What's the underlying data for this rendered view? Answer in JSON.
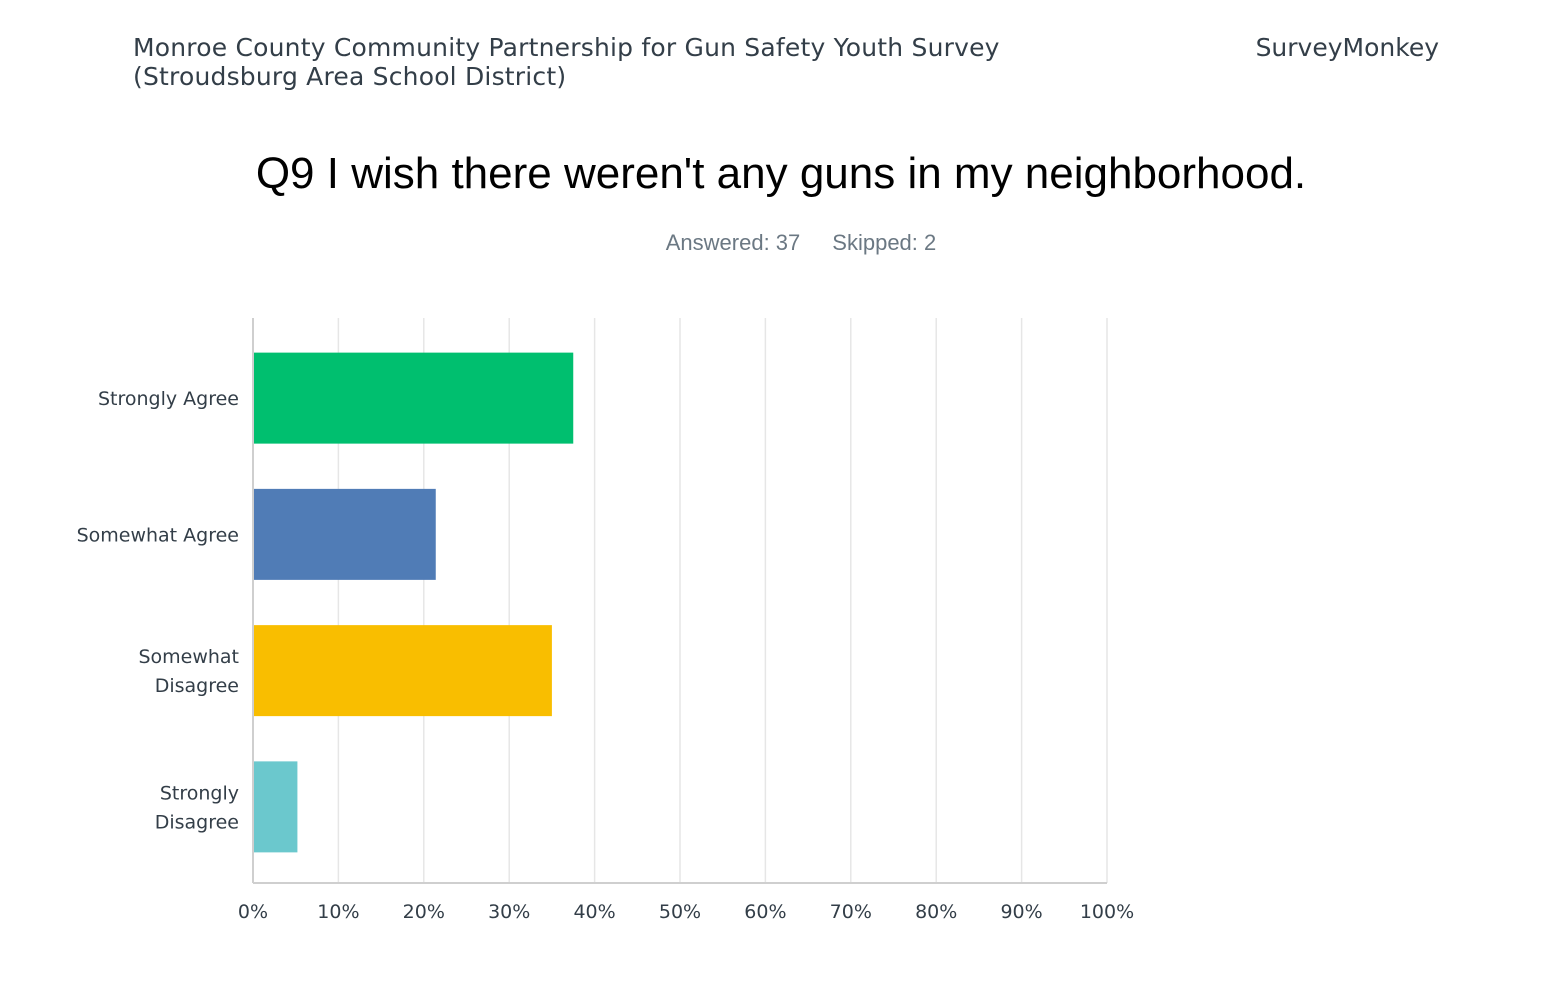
{
  "header": {
    "survey_title": "Monroe County Community Partnership for Gun Safety Youth Survey (Stroudsburg Area School District)",
    "brand": "SurveyMonkey"
  },
  "question": {
    "title": "Q9 I wish there weren't any guns in my neighborhood.",
    "answered": "Answered: 37",
    "skipped": "Skipped: 2"
  },
  "chart_data": {
    "type": "bar",
    "orientation": "horizontal",
    "categories": [
      [
        "Strongly Agree"
      ],
      [
        "Somewhat Agree"
      ],
      [
        "Somewhat",
        "Disagree"
      ],
      [
        "Strongly",
        "Disagree"
      ]
    ],
    "values": [
      37.5,
      21.4,
      35.0,
      5.2
    ],
    "colors": [
      "#00bf6f",
      "#507cb6",
      "#f9be00",
      "#6bc8cd"
    ],
    "xlim": [
      0,
      100
    ],
    "ticks": [
      0,
      10,
      20,
      30,
      40,
      50,
      60,
      70,
      80,
      90,
      100
    ],
    "tick_labels": [
      "0%",
      "10%",
      "20%",
      "30%",
      "40%",
      "50%",
      "60%",
      "70%",
      "80%",
      "90%",
      "100%"
    ],
    "grid": true,
    "title": "",
    "xlabel": "",
    "ylabel": ""
  }
}
